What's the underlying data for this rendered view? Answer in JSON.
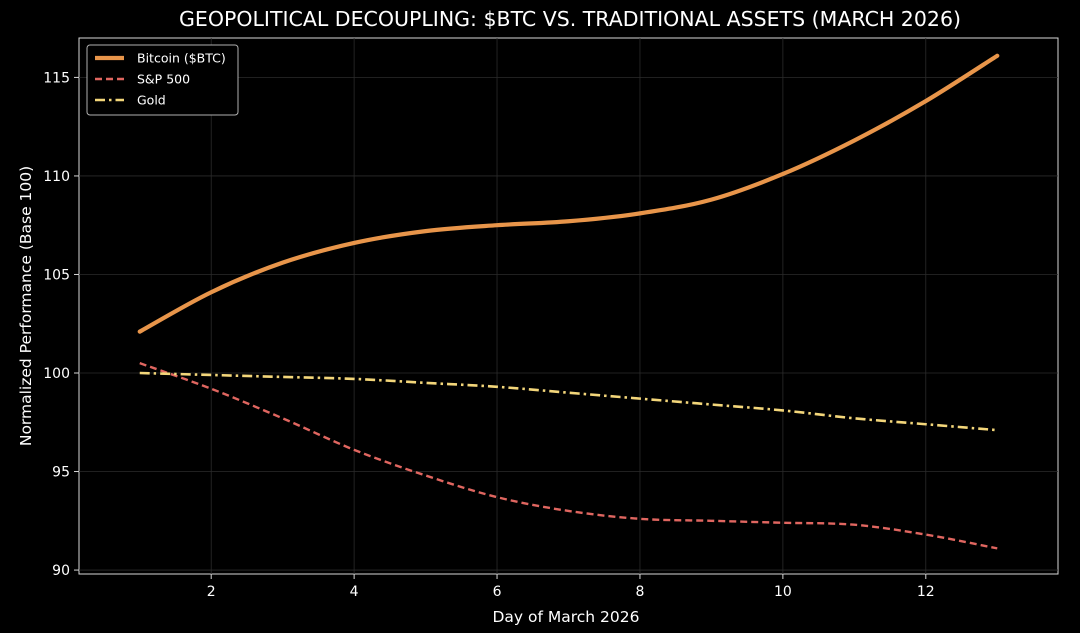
{
  "chart_data": {
    "type": "line",
    "title": "GEOPOLITICAL DECOUPLING: $BTC VS. TRADITIONAL ASSETS (MARCH 2026)",
    "xlabel": "Day of March 2026",
    "ylabel": "Normalized Performance (Base 100)",
    "xlim": [
      0.15,
      13.85
    ],
    "ylim": [
      89.8,
      117.0
    ],
    "x_ticks": [
      2,
      4,
      6,
      8,
      10,
      12
    ],
    "y_ticks": [
      90,
      95,
      100,
      105,
      110,
      115
    ],
    "grid": true,
    "legend_position": "top-left",
    "background": "#000000",
    "x": [
      1,
      2,
      3,
      4,
      5,
      6,
      7,
      8,
      9,
      10,
      11,
      12,
      13
    ],
    "series": [
      {
        "name": "Bitcoin ($BTC)",
        "color": "#E8954A",
        "style": "solid",
        "values": [
          102.1,
          104.1,
          105.6,
          106.6,
          107.2,
          107.5,
          107.7,
          108.1,
          108.8,
          110.1,
          111.8,
          113.8,
          116.1
        ]
      },
      {
        "name": "S&P 500",
        "color": "#E06660",
        "style": "dashed",
        "values": [
          100.5,
          99.2,
          97.7,
          96.1,
          94.8,
          93.7,
          93.0,
          92.6,
          92.5,
          92.4,
          92.3,
          91.8,
          91.1
        ]
      },
      {
        "name": "Gold",
        "color": "#F3D67A",
        "style": "dashdot",
        "values": [
          100.0,
          99.9,
          99.8,
          99.7,
          99.5,
          99.3,
          99.0,
          98.7,
          98.4,
          98.1,
          97.7,
          97.4,
          97.1
        ]
      }
    ]
  }
}
